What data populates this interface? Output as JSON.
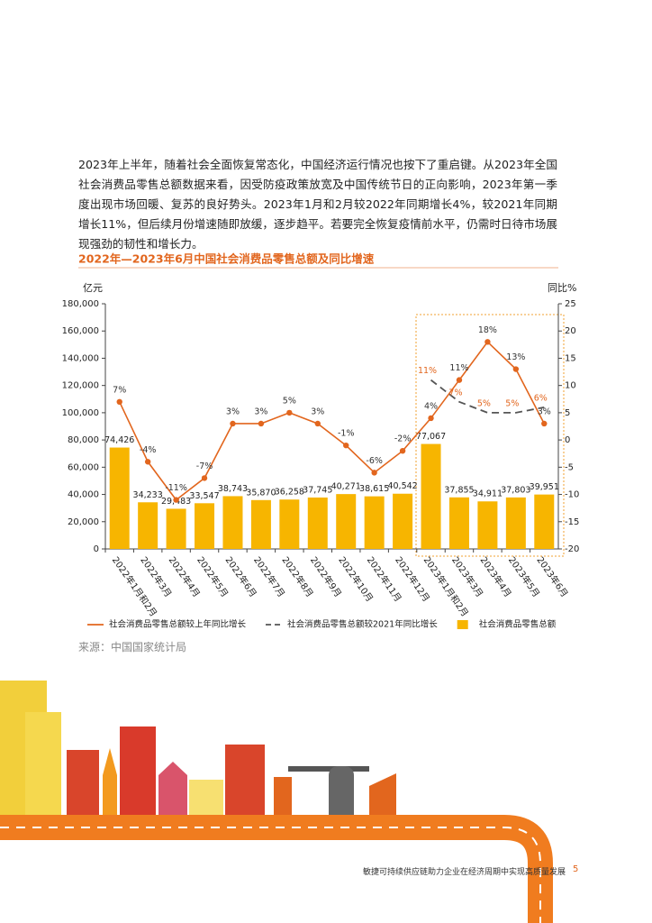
{
  "paragraph": "2023年上半年，随着社会全面恢复常态化，中国经济运行情况也按下了重启键。从2023年全国社会消费品零售总额数据来看，因受防疫政策放宽及中国传统节日的正向影响，2023年第一季度出现市场回暖、复苏的良好势头。2023年1月和2月较2022年同期增长4%，较2021年同期增长11%，但后续月份增速随即放缓，逐步趋平。若要完全恢复疫情前水平，仍需时日待市场展现强劲的韧性和增长力。",
  "chart_data": {
    "type": "bar-line",
    "title": "2022年—2023年6月中国社会消费品零售总额及同比增速",
    "y_label": "亿元",
    "y2_label": "同比%",
    "categories": [
      "2022年1月和2月",
      "2022年3月",
      "2022年4月",
      "2022年5月",
      "2022年6月",
      "2022年7月",
      "2022年8月",
      "2022年9月",
      "2022年10月",
      "2022年11月",
      "2022年12月",
      "2023年1月和2月",
      "2023年3月",
      "2023年4月",
      "2023年5月",
      "2023年6月"
    ],
    "series": [
      {
        "name": "社会消费品零售总额较上年同比增长",
        "type": "line",
        "axis": "y2",
        "color": "#e2661e",
        "values": [
          7,
          -4,
          -11,
          -7,
          3,
          3,
          5,
          3,
          -1,
          -6,
          -2,
          4,
          11,
          18,
          13,
          3
        ],
        "value_labels": [
          "7%",
          "-4%",
          "-11%",
          "-7%",
          "3%",
          "3%",
          "5%",
          "3%",
          "-1%",
          "-6%",
          "-2%",
          "4%",
          "11%",
          "18%",
          "13%",
          "3%"
        ]
      },
      {
        "name": "社会消费品零售总额较2021年同比增长",
        "type": "line",
        "dashed": true,
        "axis": "y2",
        "color": "#555555",
        "label_color": "#e2661e",
        "values": [
          null,
          null,
          null,
          null,
          null,
          null,
          null,
          null,
          null,
          null,
          null,
          11,
          7,
          5,
          5,
          6
        ],
        "value_labels": [
          null,
          null,
          null,
          null,
          null,
          null,
          null,
          null,
          null,
          null,
          null,
          "11%",
          "7%",
          "5%",
          "5%",
          "6%"
        ]
      },
      {
        "name": "社会消费品零售总额",
        "type": "bar",
        "color": "#f7b500",
        "values": [
          74426,
          34233,
          29483,
          33547,
          38743,
          35870,
          36258,
          37745,
          40271,
          38615,
          40542,
          77067,
          37855,
          34911,
          37803,
          39951
        ],
        "value_labels": [
          "74,426",
          "34,233",
          "29,483",
          "33,547",
          "38,743",
          "35,870",
          "36,258",
          "37,745",
          "40,271",
          "38,615",
          "40,542",
          "77,067",
          "37,855",
          "34,911",
          "37,803",
          "39,951"
        ]
      }
    ],
    "ylim": [
      0,
      180000
    ],
    "yticks": [
      0,
      {
        "value": 20000,
        "label": "20,000"
      },
      {
        "value": 40000,
        "label": "40,000"
      },
      {
        "value": 60000,
        "label": "60,000"
      },
      {
        "value": 80000,
        "label": "80,000"
      },
      {
        "value": 100000,
        "label": "100,000"
      },
      {
        "value": 120000,
        "label": "120,000"
      },
      {
        "value": 140000,
        "label": "140,000"
      },
      {
        "value": 160000,
        "label": "160,000"
      },
      {
        "value": 180000,
        "label": "180,000"
      }
    ],
    "y2lim": [
      -20,
      25
    ],
    "y2ticks": [
      -20,
      -15,
      -10,
      -5,
      0,
      5,
      10,
      15,
      20,
      25
    ]
  },
  "source": "来源：中国国家统计局",
  "footer": {
    "text": "敏捷可持续供应链助力企业在经济周期中实现高质量发展",
    "page": "5"
  }
}
